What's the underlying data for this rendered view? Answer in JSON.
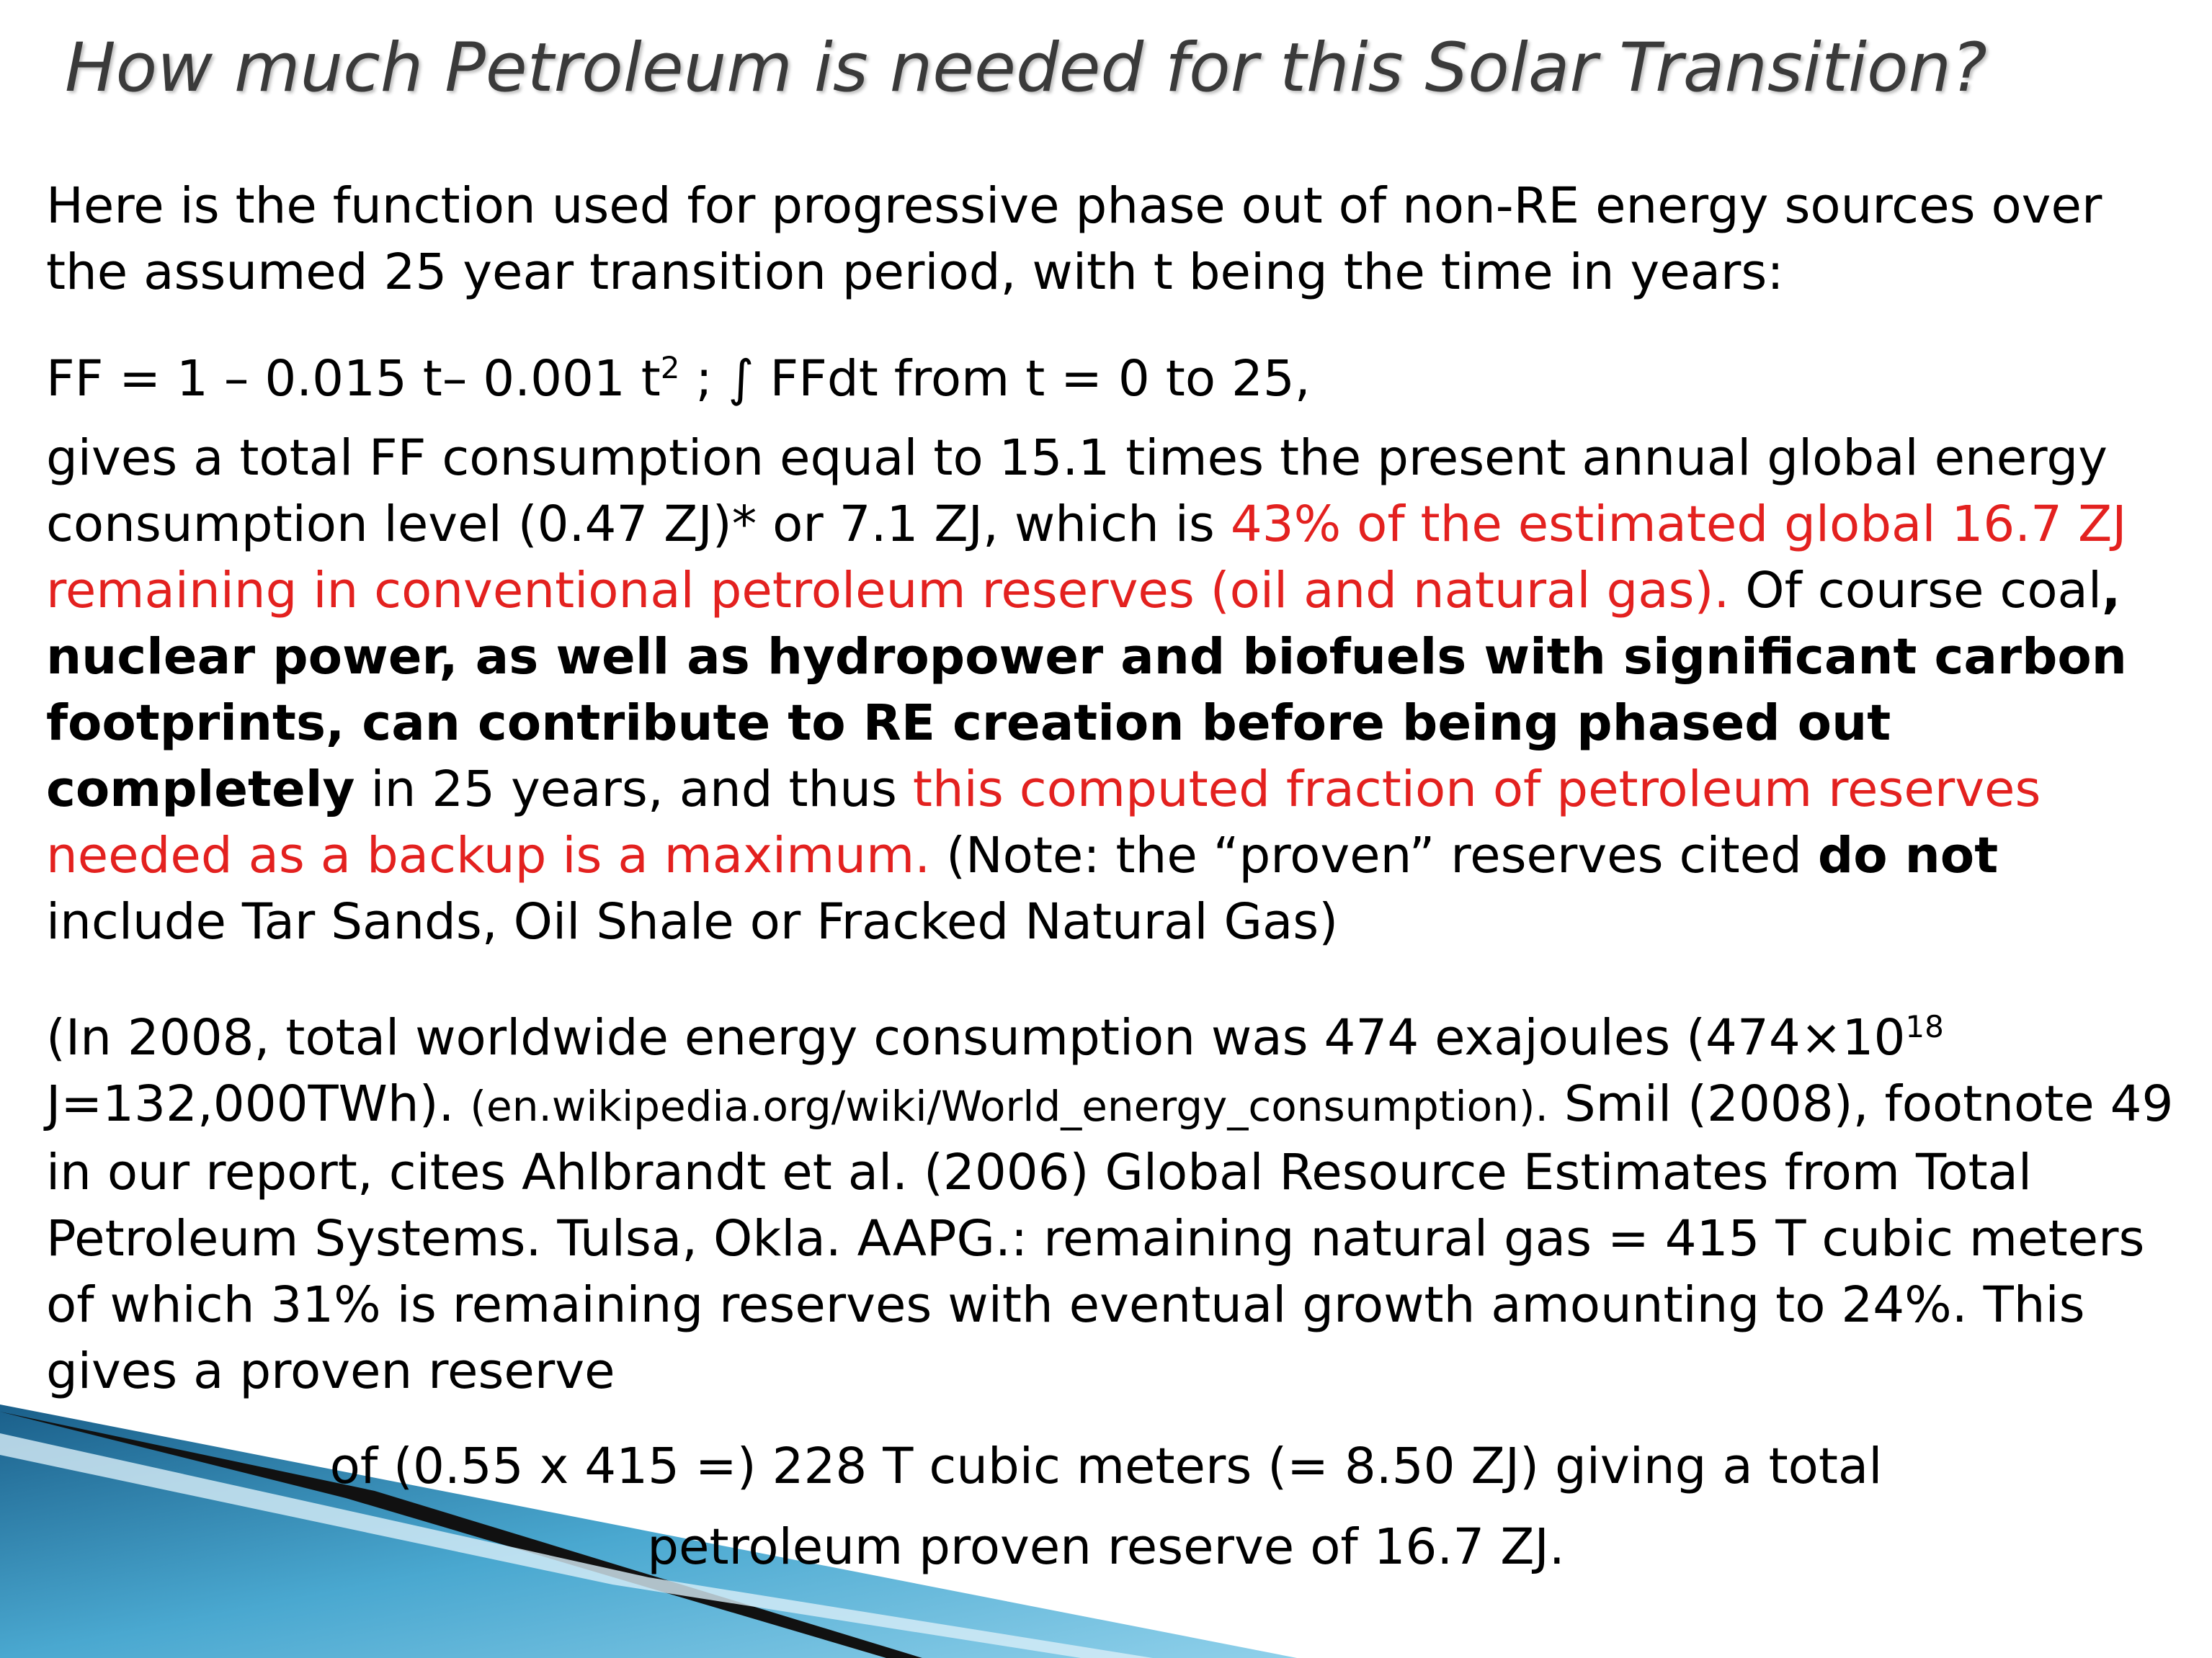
{
  "title": "How much Petroleum is needed for this Solar Transition?",
  "paragraphs": [
    {
      "runs": [
        "Here is the function used for progressive phase out of non-RE energy sources over the assumed 25 year transition period, with t being the time in years:"
      ]
    },
    {
      "runs": [
        "FF = 1  – 0.015 t– 0.001 t",
        "2",
        " ; ∫ FFdt from t = 0 to 25,"
      ]
    },
    {
      "runs": [
        "gives a total FF consumption equal to 15.1 times the present annual global energy consumption level (0.47 ZJ)* or 7.1 ZJ, which is ",
        "43% of the estimated global 16.7 ZJ remaining in conventional petroleum reserves (oil and natural gas).",
        " Of course coal",
        ", nuclear power, as well as hydropower and biofuels with significant carbon footprints, can contribute to RE creation before being phased out completely",
        " in 25 years, and thus ",
        "this computed fraction of petroleum reserves needed as a backup is a maximum.",
        "  (Note: the “proven” reserves cited ",
        "do not",
        " include Tar Sands, Oil Shale or Fracked Natural Gas)"
      ]
    },
    {
      "runs": [
        "(In 2008, total worldwide energy consumption was 474 exajoules (474×10",
        "18",
        " J=132,000TWh).  ",
        "(en.wikipedia.org/wiki/World_energy_consumption).",
        " Smil (2008), footnote 49 in our report, cites Ahlbrandt et al. (2006) Global Resource Estimates from Total Petroleum Systems. Tulsa, Okla. AAPG.: remaining natural gas = 415 T cubic meters of which 31% is remaining reserves with eventual growth amounting to 24%. This gives a proven reserve"
      ]
    },
    {
      "runs": [
        "of (0.55 x 415 =)  228 T cubic meters (= 8.50  ZJ) giving a total",
        "petroleum proven reserve of 16.7 ZJ."
      ]
    }
  ]
}
